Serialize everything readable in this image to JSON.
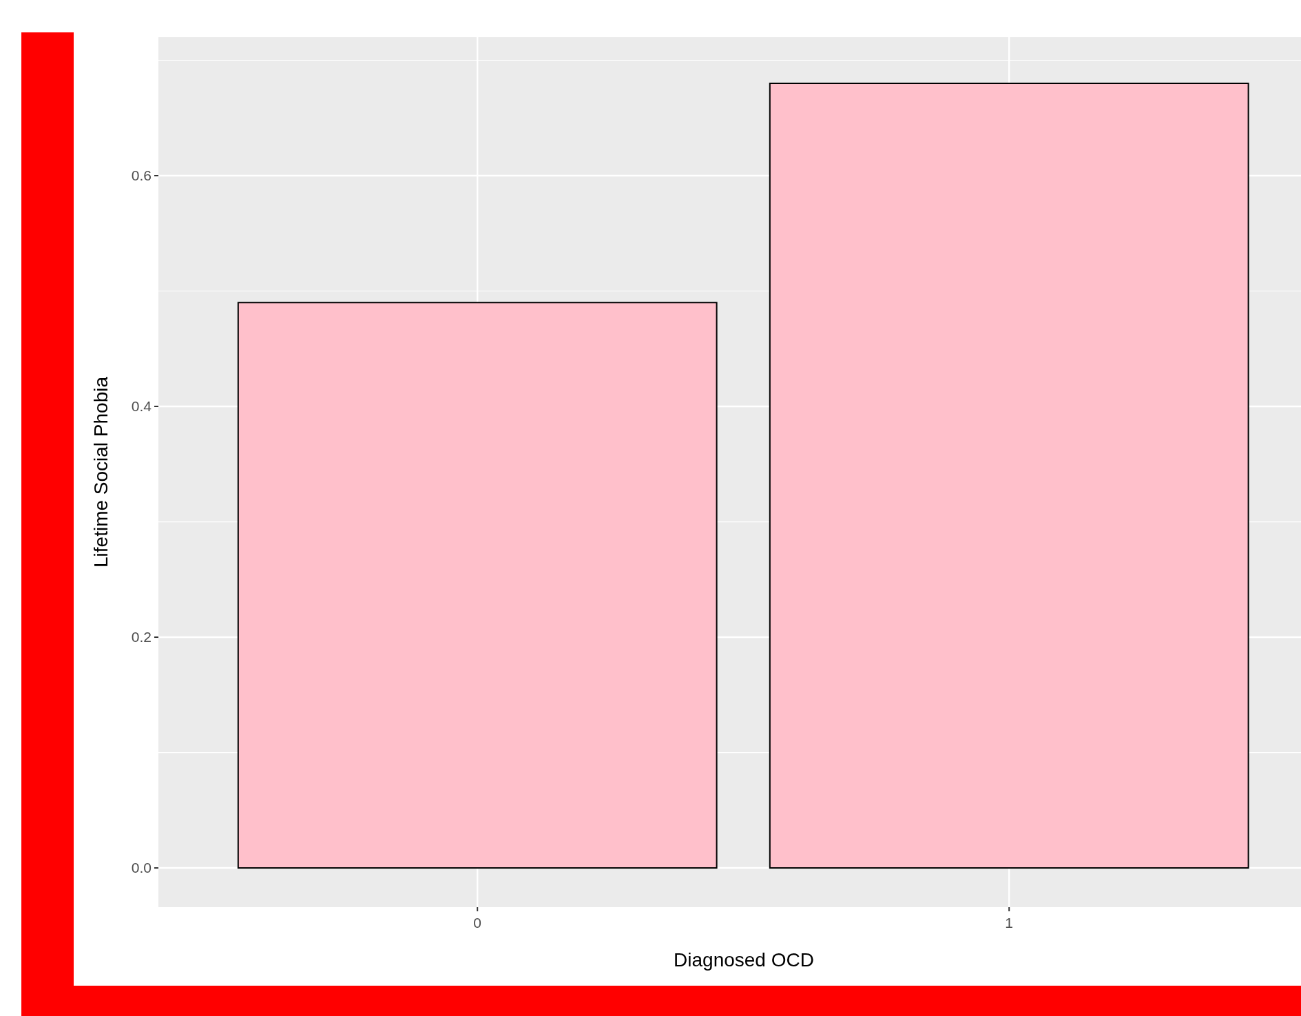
{
  "chart_data": {
    "type": "bar",
    "xlabel": "Diagnosed OCD",
    "ylabel": "Lifetime Social Phobia",
    "categories": [
      "0",
      "1"
    ],
    "values": [
      0.49,
      0.68
    ],
    "color": "#ffc0cb",
    "ylim": [
      -0.034,
      0.72
    ],
    "yticks": [
      {
        "value": 0,
        "label": "0.0"
      },
      {
        "value": 0.2,
        "label": "0.2"
      },
      {
        "value": 0.4,
        "label": "0.4"
      },
      {
        "value": 0.6,
        "label": "0.6"
      }
    ],
    "grid": true
  }
}
